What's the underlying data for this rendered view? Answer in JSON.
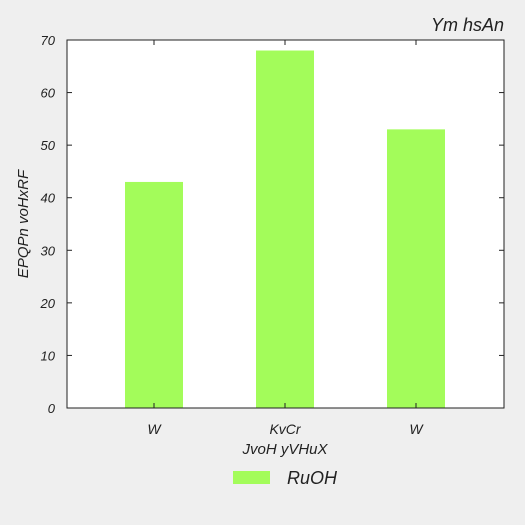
{
  "chart_data": {
    "type": "bar",
    "title": "Ym hsAn",
    "xlabel": "JvoH yVHuX",
    "ylabel": "EPQPn voHxRF",
    "categories": [
      "W",
      "KvCr",
      "W"
    ],
    "series": [
      {
        "name": "RuOH",
        "values": [
          43,
          68,
          53
        ]
      }
    ],
    "ylim": [
      0,
      70
    ],
    "yticks": [
      0,
      10,
      20,
      30,
      40,
      50,
      60,
      70
    ],
    "grid": false,
    "legend_position": "bottom-center",
    "colors": {
      "bar": "#a3fc5a",
      "background": "#efefef",
      "plot_area": "#ffffff",
      "axis": "#222222"
    }
  }
}
